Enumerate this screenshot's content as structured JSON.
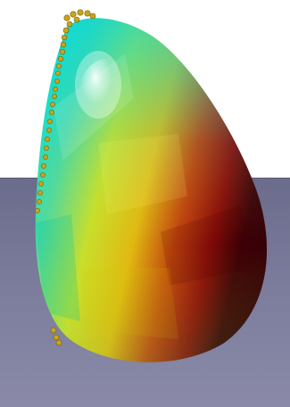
{
  "scene": {
    "subject": "3d-shaded-droplet-shape",
    "background_color": "#ffffff",
    "floor_color": "#7a7a99",
    "colormap": [
      "#00e5d8",
      "#5fd87a",
      "#d8e01c",
      "#d89a12",
      "#b0200e",
      "#3a0008"
    ],
    "marker_color": "#c9a51c"
  }
}
